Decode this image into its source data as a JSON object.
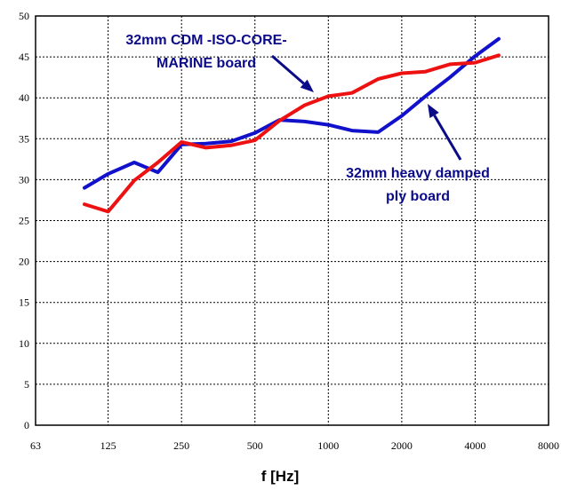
{
  "chart_data": {
    "type": "line",
    "x_scale": "log",
    "xlabel": "f [Hz]",
    "ylabel": "",
    "xlim": [
      63,
      8000
    ],
    "ylim": [
      0,
      50
    ],
    "x_ticks": [
      "63",
      "125",
      "250",
      "500",
      "1000",
      "2000",
      "4000",
      "8000"
    ],
    "y_ticks": [
      "0",
      "5",
      "10",
      "15",
      "20",
      "25",
      "30",
      "35",
      "40",
      "45",
      "50"
    ],
    "grid": true,
    "x": [
      100,
      125,
      160,
      200,
      250,
      315,
      400,
      500,
      630,
      800,
      1000,
      1250,
      1600,
      2000,
      2500,
      3150,
      4000,
      5000
    ],
    "series": [
      {
        "name": "32mm CDM -ISO-CORE-MARINE board",
        "color": "#ee1111",
        "values": [
          27.0,
          26.1,
          29.9,
          32.1,
          34.6,
          33.9,
          34.2,
          34.8,
          37.2,
          39.1,
          40.2,
          40.6,
          42.3,
          43.0,
          43.2,
          44.1,
          44.3,
          45.2
        ]
      },
      {
        "name": "32mm heavy damped ply board",
        "color": "#1111cc",
        "values": [
          29.0,
          30.7,
          32.1,
          30.9,
          34.3,
          34.4,
          34.7,
          35.7,
          37.3,
          37.1,
          36.7,
          36.0,
          35.8,
          37.8,
          40.2,
          42.5,
          45.1,
          47.2
        ]
      }
    ],
    "annotations": [
      {
        "lines": [
          "32mm CDM -ISO-CORE-",
          "MARINE board"
        ],
        "points_to": "32mm CDM -ISO-CORE-MARINE board"
      },
      {
        "lines": [
          "32mm heavy damped",
          "ply board"
        ],
        "points_to": "32mm heavy damped ply board"
      }
    ]
  }
}
